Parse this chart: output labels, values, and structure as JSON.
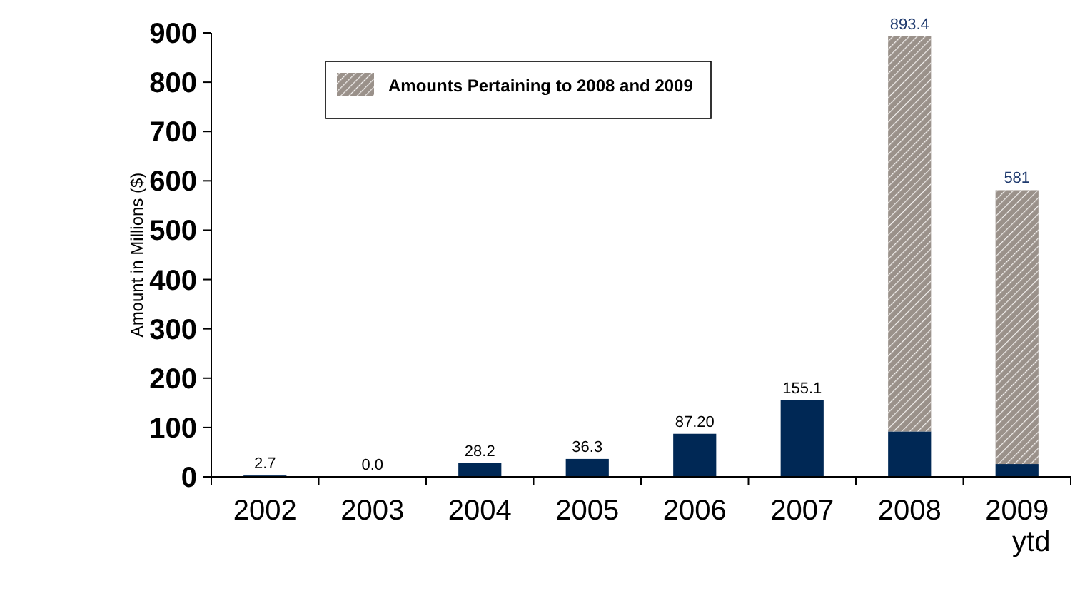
{
  "chart_data": {
    "type": "bar",
    "ylabel": "Amount in Millions ($)",
    "categories": [
      "2002",
      "2003",
      "2004",
      "2005",
      "2006",
      "2007",
      "2008",
      "2009\nytd"
    ],
    "stacked": true,
    "series": [
      {
        "color": "#002855",
        "values": [
          2.7,
          0,
          28.2,
          36.3,
          87.2,
          155.1,
          92,
          26
        ]
      },
      {
        "name": "Amounts Pertaining to 2008 and 2009",
        "color": "#9a918a",
        "values": [
          null,
          null,
          null,
          null,
          null,
          null,
          801.4,
          555
        ]
      }
    ],
    "totals": [
      "2.7",
      "0.0",
      "28.2",
      "36.3",
      "87.20",
      "155.1",
      "893.4",
      "581"
    ],
    "ylim": [
      0,
      900
    ],
    "yticks": [
      0,
      100,
      200,
      300,
      400,
      500,
      600,
      700,
      800,
      900
    ],
    "legend": "top",
    "grid": false
  }
}
